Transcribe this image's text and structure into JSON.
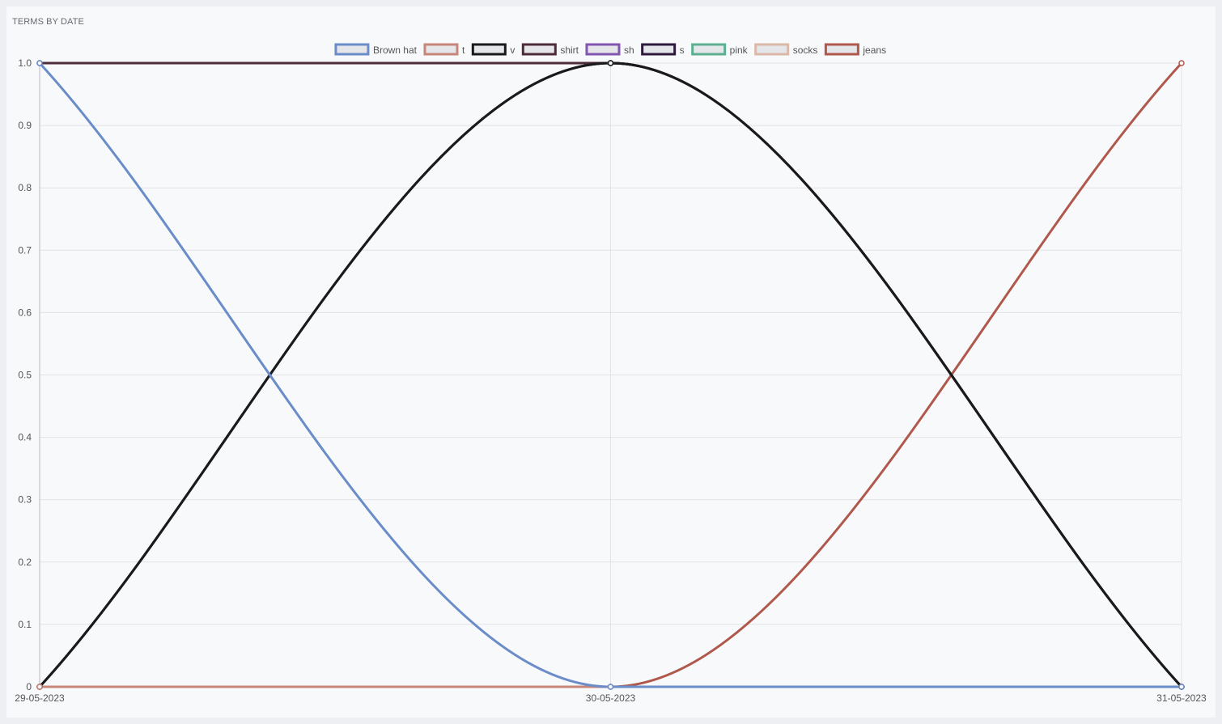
{
  "panel": {
    "title": "TERMS BY DATE"
  },
  "chart_data": {
    "type": "line",
    "title": "TERMS BY DATE",
    "xlabel": "",
    "ylabel": "",
    "x": [
      "29-05-2023",
      "30-05-2023",
      "31-05-2023"
    ],
    "ylim": [
      0,
      1.0
    ],
    "yticks": [
      "0",
      "0.1",
      "0.2",
      "0.3",
      "0.4",
      "0.5",
      "0.6",
      "0.7",
      "0.8",
      "0.9",
      "1.0"
    ],
    "grid": true,
    "legend_position": "top-center",
    "series": [
      {
        "name": "Brown hat",
        "color": "#6a8cc8",
        "values": [
          1,
          0,
          0
        ]
      },
      {
        "name": "t",
        "color": "#c8867a",
        "values": [
          0,
          0,
          0
        ]
      },
      {
        "name": "v",
        "color": "#1a1a1a",
        "values": [
          0,
          1,
          0
        ]
      },
      {
        "name": "shirt",
        "color": "#4e2b38",
        "values": [
          1,
          1,
          0
        ]
      },
      {
        "name": "sh",
        "color": "#8255b0",
        "values": [
          0,
          1,
          0
        ]
      },
      {
        "name": "s",
        "color": "#2e1a3c",
        "values": [
          0,
          1,
          0
        ]
      },
      {
        "name": "pink",
        "color": "#5cb090",
        "values": [
          0,
          1,
          0
        ]
      },
      {
        "name": "socks",
        "color": "#dbb8a8",
        "values": [
          0,
          0,
          0
        ]
      },
      {
        "name": "jeans",
        "color": "#b0584c",
        "values": [
          0,
          0,
          1
        ]
      }
    ]
  }
}
